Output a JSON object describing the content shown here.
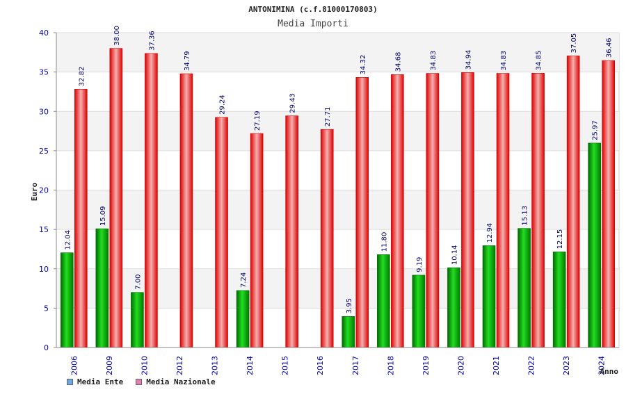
{
  "chart_data": {
    "type": "bar",
    "title": "ANTONIMINA (c.f.81000170803)",
    "subtitle": "Media Importi",
    "xlabel": "Anno",
    "ylabel": "Euro",
    "ylim": [
      0,
      40
    ],
    "yticks": [
      0,
      5,
      10,
      15,
      20,
      25,
      30,
      35,
      40
    ],
    "categories": [
      "2006",
      "2009",
      "2010",
      "2012",
      "2013",
      "2014",
      "2015",
      "2016",
      "2017",
      "2018",
      "2019",
      "2020",
      "2021",
      "2022",
      "2023",
      "2024"
    ],
    "series": [
      {
        "name": "Media Ente",
        "values": [
          12.04,
          15.09,
          7.0,
          null,
          null,
          7.24,
          null,
          null,
          3.95,
          11.8,
          9.19,
          10.14,
          12.94,
          15.13,
          12.15,
          25.97
        ],
        "labels": [
          "12.04",
          "15.09",
          "7.00",
          "",
          "",
          "7.24",
          "",
          "",
          "3.95",
          "11.80",
          "9.19",
          "10.14",
          "12.94",
          "15.13",
          "12.15",
          "25.97"
        ],
        "color": "#00b000"
      },
      {
        "name": "Media Nazionale",
        "values": [
          32.82,
          38.0,
          37.36,
          34.79,
          29.24,
          27.19,
          29.43,
          27.71,
          34.32,
          34.68,
          34.83,
          34.94,
          34.83,
          34.85,
          37.05,
          36.46
        ],
        "labels": [
          "32.82",
          "38.00",
          "37.36",
          "34.79",
          "29.24",
          "27.19",
          "29.43",
          "27.71",
          "34.32",
          "34.68",
          "34.83",
          "34.94",
          "34.83",
          "34.85",
          "37.05",
          "36.46"
        ],
        "color": "#ee1111"
      }
    ],
    "legend": [
      {
        "label": "Media Ente",
        "color": "#6aaae8"
      },
      {
        "label": "Media Nazionale",
        "color": "#e07fb0"
      }
    ],
    "grid": true,
    "legend_placement": "bottom-left"
  }
}
